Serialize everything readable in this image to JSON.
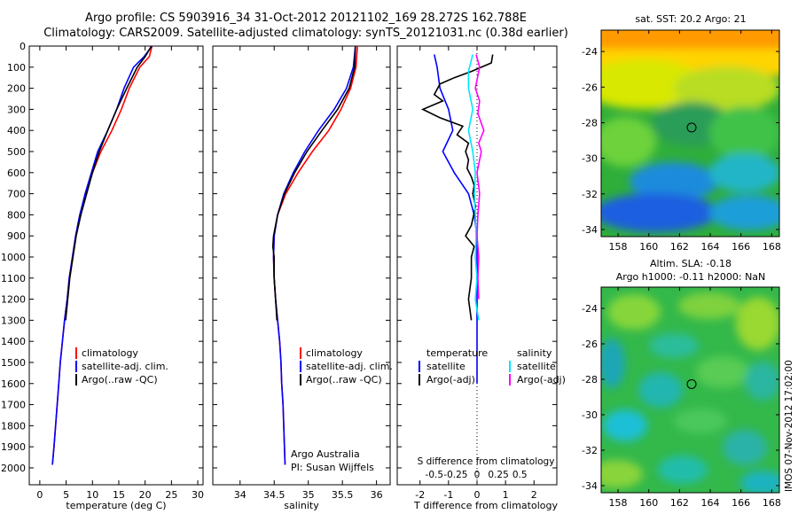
{
  "title": {
    "line1": "Argo profile: CS 5903916_34 31-Oct-2012 20121102_169 28.272S 162.788E",
    "line2": "Climatology: CARS2009. Satellite-adjusted climatology: synTS_20121031.nc (0.38d earlier)"
  },
  "colors": {
    "climatology": "#ff0000",
    "satellite": "#0000ff",
    "argo": "#000000",
    "sal_satellite": "#00e5ff",
    "sal_argo": "#ff00ff"
  },
  "chart_data": [
    {
      "type": "line",
      "xlabel": "temperature (deg C)",
      "ylabel": "",
      "xlim": [
        -2,
        31
      ],
      "ylim": [
        2080,
        0
      ],
      "x_ticks": [
        0,
        5,
        10,
        15,
        20,
        25,
        30
      ],
      "y_ticks": [
        0,
        100,
        200,
        300,
        400,
        500,
        600,
        700,
        800,
        900,
        1000,
        1100,
        1200,
        1300,
        1400,
        1500,
        1600,
        1700,
        1800,
        1900,
        2000
      ],
      "legend": [
        "climatology",
        "satellite-adj. clim.",
        "Argo(..raw -QC)"
      ],
      "series": [
        {
          "name": "climatology",
          "color": "red",
          "points": [
            [
              21.3,
              0
            ],
            [
              20.8,
              50
            ],
            [
              19,
              100
            ],
            [
              17,
              200
            ],
            [
              15.5,
              300
            ],
            [
              13.7,
              400
            ],
            [
              11.6,
              500
            ],
            [
              10,
              600
            ],
            [
              8.7,
              700
            ],
            [
              7.6,
              800
            ],
            [
              6.8,
              900
            ],
            [
              6.2,
              1000
            ],
            [
              5.6,
              1100
            ],
            [
              5.2,
              1200
            ],
            [
              4.7,
              1300
            ],
            [
              4.3,
              1400
            ],
            [
              3.9,
              1500
            ],
            [
              3.6,
              1600
            ],
            [
              3.3,
              1700
            ],
            [
              3,
              1800
            ],
            [
              2.7,
              1900
            ],
            [
              2.4,
              1985
            ]
          ]
        },
        {
          "name": "satellite-adj. clim.",
          "color": "blue",
          "points": [
            [
              21.3,
              0
            ],
            [
              19.8,
              50
            ],
            [
              17.8,
              100
            ],
            [
              16,
              200
            ],
            [
              14.6,
              300
            ],
            [
              12.9,
              400
            ],
            [
              11,
              500
            ],
            [
              9.8,
              600
            ],
            [
              8.6,
              700
            ],
            [
              7.6,
              800
            ],
            [
              6.8,
              900
            ],
            [
              6.2,
              1000
            ],
            [
              5.6,
              1100
            ],
            [
              5.2,
              1200
            ],
            [
              4.7,
              1300
            ],
            [
              4.3,
              1400
            ],
            [
              3.9,
              1500
            ],
            [
              3.6,
              1600
            ],
            [
              3.3,
              1700
            ],
            [
              3,
              1800
            ],
            [
              2.7,
              1900
            ],
            [
              2.4,
              1985
            ]
          ]
        },
        {
          "name": "Argo(..raw -QC)",
          "color": "black",
          "points": [
            [
              21.2,
              0
            ],
            [
              20,
              50
            ],
            [
              18.5,
              100
            ],
            [
              16.5,
              200
            ],
            [
              14.6,
              300
            ],
            [
              12.9,
              400
            ],
            [
              11.3,
              500
            ],
            [
              10,
              600
            ],
            [
              8.9,
              700
            ],
            [
              7.8,
              800
            ],
            [
              6.9,
              900
            ],
            [
              6.3,
              1000
            ],
            [
              5.7,
              1100
            ],
            [
              5.3,
              1200
            ],
            [
              4.9,
              1300
            ]
          ]
        }
      ]
    },
    {
      "type": "line",
      "xlabel": "salinity",
      "ylabel": "",
      "xlim": [
        33.6,
        36.2
      ],
      "ylim": [
        2080,
        0
      ],
      "x_ticks": [
        34,
        34.5,
        35,
        35.5,
        36
      ],
      "legend": [
        "climatology",
        "satellite-adj. clim.",
        "Argo(..raw -QC)"
      ],
      "annotation": [
        "Argo Australia",
        "PI: Susan Wijffels"
      ],
      "series": [
        {
          "name": "climatology",
          "color": "red",
          "points": [
            [
              35.72,
              0
            ],
            [
              35.7,
              100
            ],
            [
              35.62,
              200
            ],
            [
              35.48,
              300
            ],
            [
              35.3,
              400
            ],
            [
              35.06,
              500
            ],
            [
              34.85,
              600
            ],
            [
              34.67,
              700
            ],
            [
              34.55,
              800
            ],
            [
              34.5,
              900
            ],
            [
              34.49,
              1000
            ],
            [
              34.5,
              1100
            ],
            [
              34.52,
              1200
            ],
            [
              34.55,
              1300
            ],
            [
              34.58,
              1400
            ],
            [
              34.6,
              1500
            ],
            [
              34.61,
              1600
            ],
            [
              34.63,
              1700
            ],
            [
              34.64,
              1800
            ],
            [
              34.65,
              1900
            ],
            [
              34.66,
              1985
            ]
          ]
        },
        {
          "name": "satellite-adj. clim.",
          "color": "blue",
          "points": [
            [
              35.69,
              0
            ],
            [
              35.66,
              100
            ],
            [
              35.56,
              200
            ],
            [
              35.38,
              300
            ],
            [
              35.15,
              400
            ],
            [
              34.95,
              500
            ],
            [
              34.78,
              600
            ],
            [
              34.64,
              700
            ],
            [
              34.55,
              800
            ],
            [
              34.5,
              900
            ],
            [
              34.49,
              1000
            ],
            [
              34.5,
              1100
            ],
            [
              34.52,
              1200
            ],
            [
              34.55,
              1300
            ],
            [
              34.58,
              1400
            ],
            [
              34.6,
              1500
            ],
            [
              34.61,
              1600
            ],
            [
              34.63,
              1700
            ],
            [
              34.64,
              1800
            ],
            [
              34.65,
              1900
            ],
            [
              34.66,
              1985
            ]
          ]
        },
        {
          "name": "Argo(..raw -QC)",
          "color": "black",
          "points": [
            [
              35.69,
              0
            ],
            [
              35.68,
              100
            ],
            [
              35.6,
              200
            ],
            [
              35.43,
              300
            ],
            [
              35.2,
              400
            ],
            [
              34.98,
              500
            ],
            [
              34.8,
              600
            ],
            [
              34.65,
              700
            ],
            [
              34.55,
              800
            ],
            [
              34.49,
              900
            ],
            [
              34.48,
              950
            ],
            [
              34.5,
              1000
            ],
            [
              34.5,
              1100
            ],
            [
              34.52,
              1200
            ],
            [
              34.54,
              1300
            ]
          ]
        }
      ]
    },
    {
      "type": "line",
      "xlabel": "T difference from climatology",
      "ylabel": "",
      "top_axis_label": "S difference from climatology",
      "xlim": [
        -2.8,
        2.8
      ],
      "ylim": [
        2080,
        0
      ],
      "x_ticks": [
        -2,
        -1,
        0,
        1,
        2
      ],
      "x_tick_labels": [
        "-2",
        "-1",
        "0",
        "1",
        "2"
      ],
      "s_ticks": [
        -0.5,
        -0.25,
        0,
        0.25,
        0.5
      ],
      "s_tick_labels": [
        "-0.5",
        "-0.25",
        "0",
        "0.25",
        "0.5"
      ],
      "legend": [
        {
          "group": "temperature",
          "entries": [
            "satellite",
            "Argo(-adj)"
          ]
        },
        {
          "group": "salinity",
          "entries": [
            "satellite",
            "Argo(-adj)"
          ]
        }
      ],
      "series": [
        {
          "name": "temperature satellite",
          "color": "blue",
          "points": [
            [
              -1.5,
              40
            ],
            [
              -1.4,
              100
            ],
            [
              -1.3,
              200
            ],
            [
              -1,
              300
            ],
            [
              -0.85,
              400
            ],
            [
              -1.2,
              500
            ],
            [
              -0.8,
              600
            ],
            [
              -0.3,
              700
            ],
            [
              -0.1,
              800
            ],
            [
              0,
              900
            ],
            [
              0,
              1000
            ],
            [
              0,
              1100
            ],
            [
              0,
              1200
            ],
            [
              0,
              1300
            ],
            [
              0,
              1400
            ],
            [
              0,
              1500
            ],
            [
              0,
              1600
            ]
          ]
        },
        {
          "name": "temperature Argo(-adj)",
          "color": "black",
          "points": [
            [
              0.55,
              40
            ],
            [
              0.5,
              80
            ],
            [
              -0.2,
              120
            ],
            [
              -0.8,
              150
            ],
            [
              -1.3,
              180
            ],
            [
              -1.5,
              230
            ],
            [
              -1.2,
              260
            ],
            [
              -1.9,
              300
            ],
            [
              -1.3,
              340
            ],
            [
              -0.5,
              380
            ],
            [
              -0.7,
              420
            ],
            [
              -0.3,
              460
            ],
            [
              -0.4,
              500
            ],
            [
              -0.3,
              540
            ],
            [
              -0.35,
              580
            ],
            [
              -0.2,
              620
            ],
            [
              -0.1,
              660
            ],
            [
              -0.15,
              700
            ],
            [
              -0.05,
              760
            ],
            [
              -0.2,
              850
            ],
            [
              -0.4,
              900
            ],
            [
              -0.1,
              950
            ],
            [
              -0.2,
              1000
            ],
            [
              -0.2,
              1100
            ],
            [
              -0.3,
              1200
            ],
            [
              -0.2,
              1300
            ]
          ]
        },
        {
          "name": "salinity satellite",
          "color": "cyan",
          "points": [
            [
              -0.05,
              40
            ],
            [
              -0.1,
              120
            ],
            [
              -0.1,
              200
            ],
            [
              -0.05,
              300
            ],
            [
              -0.1,
              400
            ],
            [
              -0.05,
              500
            ],
            [
              -0.02,
              600
            ],
            [
              -0.03,
              700
            ],
            [
              -0.02,
              800
            ],
            [
              -0.01,
              900
            ],
            [
              -0.02,
              1000
            ],
            [
              0,
              1100
            ],
            [
              -0.02,
              1200
            ],
            [
              0.02,
              1300
            ]
          ]
        },
        {
          "name": "salinity Argo(-adj)",
          "color": "magenta",
          "points": [
            [
              -0.01,
              40
            ],
            [
              0.03,
              100
            ],
            [
              0,
              160
            ],
            [
              -0.02,
              200
            ],
            [
              0.03,
              260
            ],
            [
              0.01,
              320
            ],
            [
              0.08,
              400
            ],
            [
              0.02,
              460
            ],
            [
              0.05,
              500
            ],
            [
              0,
              600
            ],
            [
              0.03,
              700
            ],
            [
              0.01,
              800
            ],
            [
              0,
              900
            ],
            [
              0.02,
              1000
            ],
            [
              0.01,
              1100
            ],
            [
              0.02,
              1200
            ]
          ]
        }
      ]
    },
    {
      "type": "heatmap",
      "title": "sat. SST: 20.2 Argo: 21",
      "x_ticks": [
        158,
        160,
        162,
        164,
        166,
        168
      ],
      "y_ticks": [
        -24,
        -26,
        -28,
        -30,
        -32,
        -34
      ],
      "xlim": [
        156.9,
        168.5
      ],
      "ylim": [
        -34.4,
        -22.8
      ],
      "marker": [
        162.788,
        -28.272
      ]
    },
    {
      "type": "heatmap",
      "title_lines": [
        "Altim. SLA: -0.18",
        "Argo h1000: -0.11 h2000: NaN"
      ],
      "x_ticks": [
        158,
        160,
        162,
        164,
        166,
        168
      ],
      "y_ticks": [
        -24,
        -26,
        -28,
        -30,
        -32,
        -34
      ],
      "xlim": [
        156.9,
        168.5
      ],
      "ylim": [
        -34.4,
        -22.8
      ],
      "marker": [
        162.788,
        -28.272
      ]
    }
  ],
  "credit": "IMOS 07-Nov-2012 17:02:00"
}
